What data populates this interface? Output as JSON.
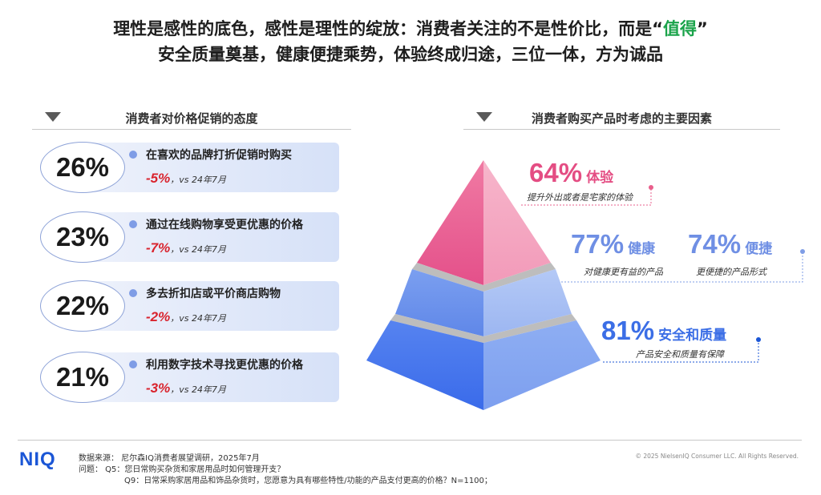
{
  "title": {
    "line1_pre": "理性是感性的底色，感性是理性的绽放：消费者关注的不是性价比，而是“",
    "line1_highlight": "值得",
    "line1_post": "”",
    "line2": "安全质量奠基，健康便捷乘势，体验终成归途，三位一体，方为诚品",
    "highlight_color": "#1aa34a"
  },
  "chart_data": [
    {
      "type": "table",
      "title": "消费者对价格促销的态度",
      "comparison_label": "vs 24年7月",
      "rows": [
        {
          "value": "26%",
          "label": "在喜欢的品牌打折促销时购买",
          "change": "-5%"
        },
        {
          "value": "23%",
          "label": "通过在线购物享受更优惠的价格",
          "change": "-7%"
        },
        {
          "value": "22%",
          "label": "多去折扣店或平价商店购物",
          "change": "-2%"
        },
        {
          "value": "21%",
          "label": "利用数字技术寻找更优惠的价格",
          "change": "-3%"
        }
      ]
    },
    {
      "type": "pyramid",
      "title": "消费者购买产品时考虑的主要因素",
      "levels": [
        {
          "tier": "top",
          "value": 64,
          "display": "64%",
          "name": "体验",
          "desc": "提升外出或者是宅家的体验",
          "color": "#e95f8c"
        },
        {
          "tier": "middle",
          "value": 77,
          "display": "77%",
          "name": "健康",
          "desc": "对健康更有益的产品",
          "color": "#7fa1ea"
        },
        {
          "tier": "middle",
          "value": 74,
          "display": "74%",
          "name": "便捷",
          "desc": "更便捷的产品形式",
          "color": "#7fa1ea"
        },
        {
          "tier": "bottom",
          "value": 81,
          "display": "81%",
          "name": "安全和质量",
          "desc": "产品安全和质量有保障",
          "color": "#3b6ee6"
        }
      ]
    }
  ],
  "footer": {
    "logo": "NIQ",
    "source": "数据来源：  尼尔森IQ消费者展望调研，2025年7月",
    "q5": "问题：  Q5：您日常购买杂货和家居用品时如何管理开支？",
    "q9": "Q9：日常采购家居用品和饰品杂货时，您愿意为具有哪些特性/功能的产品支付更高的价格？N=1100；",
    "copyright": "© 2025 NielsenIQ Consumer LLC. All Rights Reserved."
  },
  "colors": {
    "accent_red": "#d9232d",
    "pink": "#e95f8c",
    "blue_mid": "#7fa1ea",
    "blue_dark": "#3b6ee6",
    "brand": "#1b56d6"
  }
}
